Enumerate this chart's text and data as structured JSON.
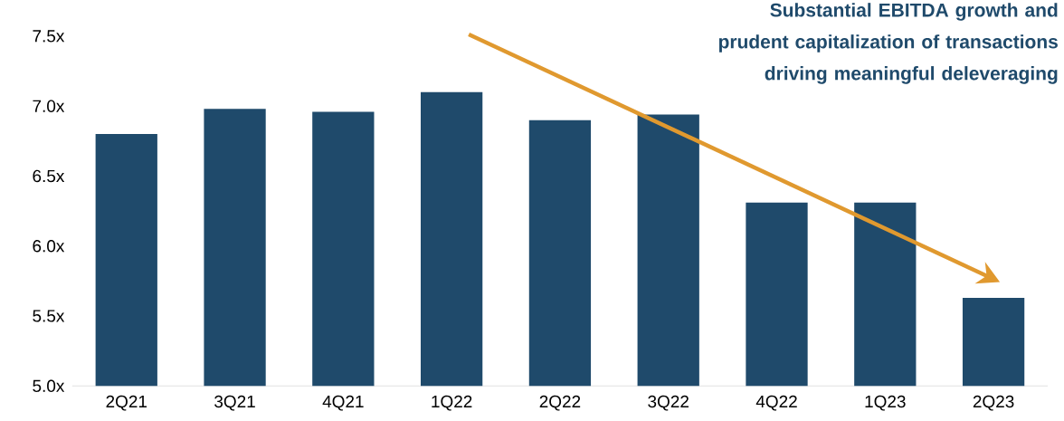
{
  "chart_data": {
    "type": "bar",
    "categories": [
      "2Q21",
      "3Q21",
      "4Q21",
      "1Q22",
      "2Q22",
      "3Q22",
      "4Q22",
      "1Q23",
      "2Q23"
    ],
    "values": [
      6.8,
      6.98,
      6.96,
      7.1,
      6.9,
      6.94,
      6.31,
      6.31,
      5.63
    ],
    "color": "#1f4a6b",
    "ylim": [
      5.0,
      7.5
    ],
    "yticks": [
      {
        "value": 5.0,
        "label": "5.0x"
      },
      {
        "value": 5.5,
        "label": "5.5x"
      },
      {
        "value": 6.0,
        "label": "6.0x"
      },
      {
        "value": 6.5,
        "label": "6.5x"
      },
      {
        "value": 7.0,
        "label": "7.0x"
      },
      {
        "value": 7.5,
        "label": "7.5x"
      }
    ],
    "annotations": [
      "Substantial EBITDA growth and prudent capitalization of transactions driving meaningful deleveraging"
    ]
  }
}
